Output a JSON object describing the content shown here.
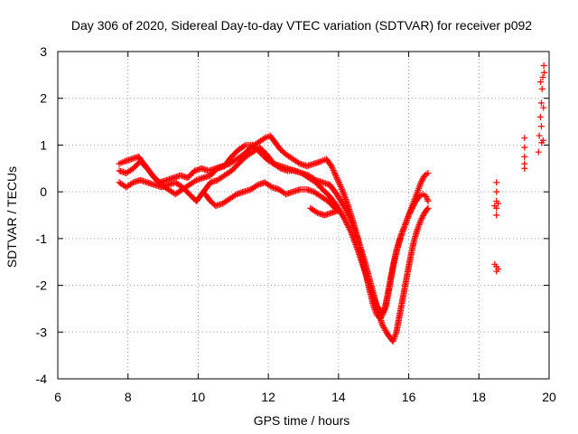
{
  "chart_data": {
    "type": "scatter",
    "title": "Day 306 of 2020, Sidereal Day-to-day VTEC variation (SDTVAR) for receiver p092",
    "xlabel": "GPS time / hours",
    "ylabel": "SDTVAR / TECUs",
    "xlim": [
      6,
      20
    ],
    "ylim": [
      -4,
      3
    ],
    "x_ticks": [
      6,
      8,
      10,
      12,
      14,
      16,
      18,
      20
    ],
    "y_ticks": [
      -4,
      -3,
      -2,
      -1,
      0,
      1,
      2,
      3
    ],
    "grid": true,
    "marker": "+",
    "color": "#ff0000",
    "series": [
      {
        "name": "track-a",
        "points": [
          [
            7.75,
            0.6
          ],
          [
            7.9,
            0.65
          ],
          [
            8.1,
            0.7
          ],
          [
            8.3,
            0.75
          ],
          [
            8.5,
            0.55
          ],
          [
            8.7,
            0.35
          ],
          [
            8.9,
            0.2
          ],
          [
            9.1,
            0.25
          ],
          [
            9.3,
            0.3
          ],
          [
            9.5,
            0.35
          ],
          [
            9.7,
            0.3
          ],
          [
            9.9,
            0.45
          ],
          [
            10.1,
            0.5
          ],
          [
            10.3,
            0.45
          ],
          [
            10.5,
            0.5
          ],
          [
            10.7,
            0.55
          ],
          [
            10.9,
            0.6
          ],
          [
            11.1,
            0.7
          ],
          [
            11.3,
            0.8
          ],
          [
            11.5,
            0.95
          ],
          [
            11.7,
            1.05
          ],
          [
            11.9,
            1.15
          ],
          [
            12.05,
            1.2
          ],
          [
            12.2,
            1.05
          ],
          [
            12.35,
            0.9
          ],
          [
            12.5,
            0.8
          ],
          [
            12.7,
            0.7
          ],
          [
            12.9,
            0.6
          ],
          [
            13.1,
            0.55
          ],
          [
            13.3,
            0.6
          ],
          [
            13.5,
            0.65
          ],
          [
            13.65,
            0.7
          ],
          [
            13.8,
            0.55
          ],
          [
            13.95,
            0.3
          ],
          [
            14.1,
            0.05
          ],
          [
            14.25,
            -0.25
          ],
          [
            14.4,
            -0.6
          ],
          [
            14.55,
            -1.0
          ],
          [
            14.7,
            -1.5
          ],
          [
            14.85,
            -2.0
          ],
          [
            15.0,
            -2.45
          ],
          [
            15.1,
            -2.65
          ],
          [
            15.2,
            -2.7
          ],
          [
            15.3,
            -2.55
          ],
          [
            15.4,
            -2.2
          ],
          [
            15.5,
            -1.8
          ],
          [
            15.6,
            -1.45
          ],
          [
            15.7,
            -1.15
          ],
          [
            15.8,
            -0.9
          ],
          [
            15.9,
            -0.7
          ],
          [
            16.0,
            -0.5
          ],
          [
            16.1,
            -0.35
          ],
          [
            16.2,
            -0.2
          ],
          [
            16.3,
            -0.1
          ],
          [
            16.4,
            -0.05
          ],
          [
            16.5,
            -0.1
          ],
          [
            16.55,
            -0.2
          ]
        ]
      },
      {
        "name": "track-b",
        "points": [
          [
            7.75,
            0.45
          ],
          [
            7.95,
            0.4
          ],
          [
            8.15,
            0.5
          ],
          [
            8.35,
            0.65
          ],
          [
            8.55,
            0.5
          ],
          [
            8.75,
            0.3
          ],
          [
            8.95,
            0.15
          ],
          [
            9.15,
            0.05
          ],
          [
            9.35,
            -0.05
          ],
          [
            9.55,
            0.05
          ],
          [
            9.75,
            0.15
          ],
          [
            9.95,
            0.25
          ],
          [
            10.15,
            0.3
          ],
          [
            10.35,
            0.35
          ],
          [
            10.55,
            0.5
          ],
          [
            10.75,
            0.55
          ],
          [
            10.95,
            0.75
          ],
          [
            11.15,
            0.9
          ],
          [
            11.35,
            1.0
          ],
          [
            11.55,
            1.0
          ],
          [
            11.75,
            0.85
          ],
          [
            11.95,
            0.7
          ],
          [
            12.15,
            0.6
          ],
          [
            12.35,
            0.55
          ],
          [
            12.55,
            0.5
          ],
          [
            12.75,
            0.45
          ],
          [
            12.95,
            0.4
          ],
          [
            13.15,
            0.3
          ],
          [
            13.35,
            0.2
          ],
          [
            13.55,
            0.05
          ],
          [
            13.75,
            -0.1
          ],
          [
            13.95,
            -0.3
          ],
          [
            14.15,
            -0.55
          ],
          [
            14.35,
            -0.85
          ],
          [
            14.55,
            -1.25
          ],
          [
            14.75,
            -1.7
          ],
          [
            14.95,
            -2.15
          ],
          [
            15.1,
            -2.45
          ],
          [
            15.25,
            -2.6
          ],
          [
            15.35,
            -2.45
          ],
          [
            15.45,
            -2.05
          ],
          [
            15.55,
            -1.6
          ],
          [
            15.65,
            -1.25
          ],
          [
            15.75,
            -1.0
          ],
          [
            15.85,
            -0.8
          ],
          [
            15.95,
            -0.6
          ],
          [
            16.05,
            -0.4
          ],
          [
            16.15,
            -0.2
          ],
          [
            16.25,
            0.0
          ],
          [
            16.35,
            0.2
          ],
          [
            16.45,
            0.35
          ],
          [
            16.55,
            0.4
          ]
        ]
      },
      {
        "name": "track-c",
        "points": [
          [
            7.75,
            0.2
          ],
          [
            7.95,
            0.1
          ],
          [
            8.15,
            0.2
          ],
          [
            8.35,
            0.25
          ],
          [
            8.55,
            0.2
          ],
          [
            8.75,
            0.15
          ],
          [
            8.95,
            0.1
          ],
          [
            9.15,
            0.15
          ],
          [
            9.35,
            0.2
          ],
          [
            9.55,
            0.1
          ],
          [
            9.75,
            -0.05
          ],
          [
            9.95,
            -0.2
          ],
          [
            10.15,
            0.0
          ],
          [
            10.35,
            0.2
          ],
          [
            10.55,
            0.25
          ],
          [
            10.75,
            0.35
          ],
          [
            10.95,
            0.45
          ],
          [
            11.15,
            0.6
          ],
          [
            11.35,
            0.75
          ],
          [
            11.55,
            0.85
          ],
          [
            11.75,
            0.95
          ],
          [
            11.95,
            0.8
          ],
          [
            12.15,
            0.6
          ],
          [
            12.35,
            0.5
          ],
          [
            12.55,
            0.45
          ],
          [
            12.75,
            0.45
          ],
          [
            12.95,
            0.4
          ],
          [
            13.15,
            0.35
          ],
          [
            13.35,
            0.25
          ],
          [
            13.55,
            0.2
          ],
          [
            13.75,
            0.15
          ],
          [
            13.95,
            -0.05
          ],
          [
            14.15,
            -0.3
          ],
          [
            14.35,
            -0.6
          ],
          [
            14.55,
            -1.0
          ],
          [
            14.75,
            -1.5
          ],
          [
            14.95,
            -2.05
          ],
          [
            15.1,
            -2.5
          ],
          [
            15.25,
            -2.85
          ],
          [
            15.4,
            -3.05
          ],
          [
            15.55,
            -3.2
          ],
          [
            15.65,
            -3.0
          ],
          [
            15.75,
            -2.6
          ],
          [
            15.85,
            -2.2
          ],
          [
            15.95,
            -1.8
          ],
          [
            16.05,
            -1.4
          ],
          [
            16.15,
            -1.05
          ],
          [
            16.25,
            -0.8
          ],
          [
            16.35,
            -0.6
          ],
          [
            16.45,
            -0.45
          ],
          [
            16.55,
            -0.35
          ]
        ]
      },
      {
        "name": "track-d",
        "points": [
          [
            10.2,
            -0.05
          ],
          [
            10.35,
            -0.2
          ],
          [
            10.5,
            -0.3
          ],
          [
            10.7,
            -0.25
          ],
          [
            10.9,
            -0.15
          ],
          [
            11.1,
            -0.05
          ],
          [
            11.3,
            0.0
          ],
          [
            11.5,
            0.05
          ],
          [
            11.7,
            0.15
          ],
          [
            11.9,
            0.2
          ],
          [
            12.1,
            0.1
          ],
          [
            12.3,
            0.05
          ],
          [
            12.5,
            -0.05
          ],
          [
            12.7,
            0.0
          ],
          [
            12.9,
            0.05
          ],
          [
            13.1,
            0.05
          ],
          [
            13.3,
            0.0
          ],
          [
            13.5,
            -0.1
          ],
          [
            13.7,
            -0.2
          ],
          [
            13.9,
            -0.35
          ]
        ]
      },
      {
        "name": "track-e",
        "points": [
          [
            13.2,
            -0.35
          ],
          [
            13.4,
            -0.45
          ],
          [
            13.6,
            -0.5
          ],
          [
            13.8,
            -0.45
          ],
          [
            14.0,
            -0.4
          ]
        ]
      },
      {
        "name": "cluster-18.5",
        "points": [
          [
            18.5,
            0.2
          ],
          [
            18.5,
            0.0
          ],
          [
            18.5,
            -0.2
          ],
          [
            18.5,
            -0.35
          ],
          [
            18.55,
            -0.25
          ],
          [
            18.45,
            -0.3
          ],
          [
            18.5,
            -0.5
          ],
          [
            18.45,
            -1.55
          ],
          [
            18.5,
            -1.6
          ],
          [
            18.55,
            -1.65
          ],
          [
            18.5,
            -1.7
          ]
        ]
      },
      {
        "name": "cluster-19.3",
        "points": [
          [
            19.3,
            1.15
          ],
          [
            19.3,
            0.95
          ],
          [
            19.3,
            0.75
          ],
          [
            19.3,
            0.6
          ],
          [
            19.3,
            0.5
          ]
        ]
      },
      {
        "name": "cluster-19.8",
        "points": [
          [
            19.7,
            0.85
          ],
          [
            19.72,
            1.2
          ],
          [
            19.75,
            1.6
          ],
          [
            19.78,
            1.9
          ],
          [
            19.8,
            2.2
          ],
          [
            19.82,
            2.45
          ],
          [
            19.85,
            2.7
          ],
          [
            19.78,
            1.4
          ],
          [
            19.83,
            1.1
          ],
          [
            19.76,
            2.35
          ],
          [
            19.84,
            1.8
          ],
          [
            19.79,
            1.05
          ],
          [
            19.86,
            2.55
          ]
        ]
      }
    ]
  }
}
